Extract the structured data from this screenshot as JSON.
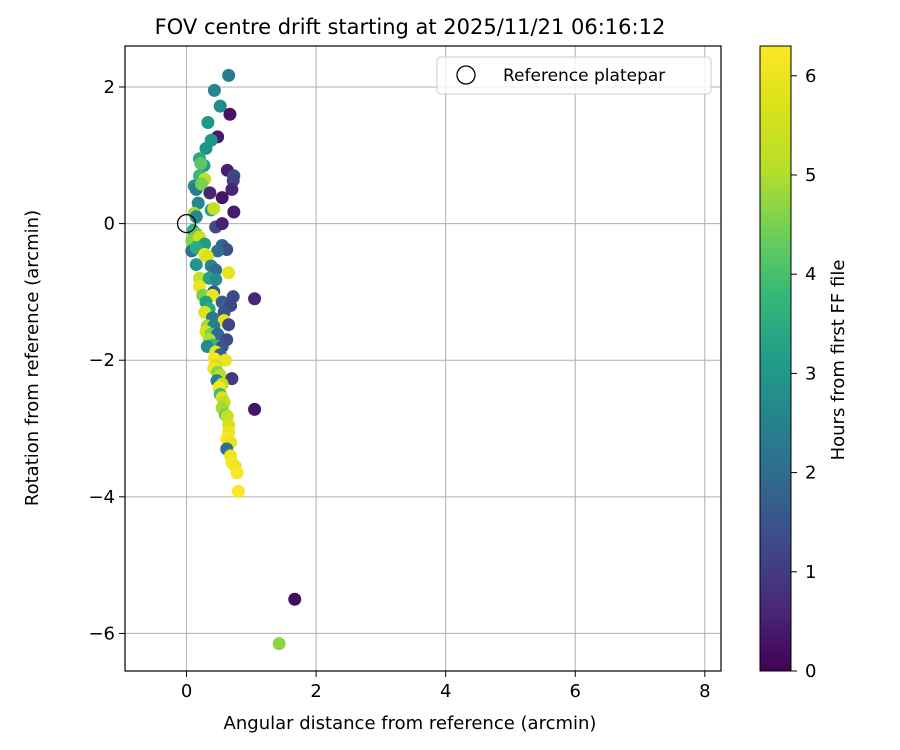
{
  "chart_data": {
    "type": "scatter",
    "title": "FOV centre drift starting at 2025/11/21 06:16:12",
    "xlabel": "Angular distance from reference (arcmin)",
    "ylabel": "Rotation from reference (arcmin)",
    "xlim": [
      -0.95,
      8.25
    ],
    "ylim": [
      -6.55,
      2.6
    ],
    "xticks": [
      0,
      2,
      4,
      6,
      8
    ],
    "xtick_labels": [
      "0",
      "2",
      "4",
      "6",
      "8"
    ],
    "yticks": [
      2,
      0,
      -2,
      -4,
      -6
    ],
    "ytick_labels": [
      "2",
      "0",
      "−2",
      "−4",
      "−6"
    ],
    "grid": true,
    "legend": {
      "location": "top-right",
      "entries": [
        "Reference platepar"
      ]
    },
    "reference_point": {
      "x": 0,
      "y": 0
    },
    "colorbar": {
      "label": "Hours from first FF file",
      "range": [
        0,
        6.3
      ],
      "ticks": [
        0,
        1,
        2,
        3,
        4,
        5,
        6
      ],
      "tick_labels": [
        "0",
        "1",
        "2",
        "3",
        "4",
        "5",
        "6"
      ],
      "colormap": "viridis"
    },
    "points": [
      [
        0.65,
        2.17,
        2.3
      ],
      [
        0.43,
        1.95,
        2.6
      ],
      [
        0.52,
        1.72,
        2.7
      ],
      [
        0.33,
        1.48,
        3.0
      ],
      [
        0.48,
        1.27,
        0.4
      ],
      [
        0.67,
        1.6,
        0.3
      ],
      [
        0.38,
        1.22,
        3.0
      ],
      [
        0.3,
        1.1,
        2.9
      ],
      [
        0.2,
        0.95,
        3.4
      ],
      [
        0.27,
        0.85,
        3.1
      ],
      [
        0.22,
        0.88,
        4.2
      ],
      [
        0.63,
        0.78,
        0.5
      ],
      [
        0.73,
        0.7,
        1.3
      ],
      [
        0.72,
        0.63,
        1.1
      ],
      [
        0.2,
        0.7,
        3.8
      ],
      [
        0.28,
        0.65,
        5.2
      ],
      [
        0.7,
        0.5,
        0.6
      ],
      [
        0.12,
        0.55,
        2.8
      ],
      [
        0.15,
        0.5,
        2.4
      ],
      [
        0.23,
        0.58,
        4.5
      ],
      [
        0.36,
        0.45,
        0.6
      ],
      [
        0.55,
        0.38,
        0.3
      ],
      [
        0.18,
        0.3,
        2.6
      ],
      [
        0.38,
        0.2,
        3.2
      ],
      [
        0.42,
        0.22,
        5.3
      ],
      [
        0.73,
        0.17,
        0.4
      ],
      [
        0.12,
        0.15,
        4.9
      ],
      [
        0.15,
        0.1,
        2.7
      ],
      [
        0.45,
        -0.05,
        1.3
      ],
      [
        0.55,
        0.0,
        0.5
      ],
      [
        0.1,
        -0.1,
        3.6
      ],
      [
        0.15,
        -0.15,
        4.3
      ],
      [
        0.08,
        -0.25,
        4.6
      ],
      [
        0.2,
        -0.2,
        5.5
      ],
      [
        0.28,
        -0.3,
        3.1
      ],
      [
        0.55,
        -0.32,
        1.8
      ],
      [
        0.62,
        -0.38,
        1.4
      ],
      [
        0.48,
        -0.4,
        2.0
      ],
      [
        0.08,
        -0.4,
        2.2
      ],
      [
        0.15,
        -0.35,
        3.5
      ],
      [
        0.28,
        -0.45,
        6.1
      ],
      [
        0.32,
        -0.48,
        5.7
      ],
      [
        0.15,
        -0.6,
        3.0
      ],
      [
        0.38,
        -0.62,
        2.6
      ],
      [
        0.45,
        -0.68,
        2.0
      ],
      [
        0.65,
        -0.72,
        5.9
      ],
      [
        0.2,
        -0.8,
        5.3
      ],
      [
        0.35,
        -0.8,
        3.3
      ],
      [
        0.45,
        -0.82,
        2.8
      ],
      [
        0.2,
        -0.92,
        6.0
      ],
      [
        0.42,
        -1.0,
        1.6
      ],
      [
        0.25,
        -1.05,
        4.5
      ],
      [
        0.4,
        -1.05,
        6.0
      ],
      [
        0.72,
        -1.07,
        1.3
      ],
      [
        1.05,
        -1.1,
        0.6
      ],
      [
        0.3,
        -1.15,
        3.2
      ],
      [
        0.55,
        -1.15,
        1.6
      ],
      [
        0.62,
        -1.2,
        1.8
      ],
      [
        0.68,
        -1.2,
        1.2
      ],
      [
        0.35,
        -1.25,
        3.5
      ],
      [
        0.28,
        -1.3,
        5.8
      ],
      [
        0.58,
        -1.3,
        1.5
      ],
      [
        0.4,
        -1.38,
        2.3
      ],
      [
        0.58,
        -1.42,
        5.9
      ],
      [
        0.65,
        -1.48,
        1.2
      ],
      [
        0.32,
        -1.5,
        4.9
      ],
      [
        0.42,
        -1.5,
        2.5
      ],
      [
        0.3,
        -1.58,
        5.6
      ],
      [
        0.38,
        -1.62,
        4.4
      ],
      [
        0.48,
        -1.62,
        2.0
      ],
      [
        0.35,
        -1.7,
        5.0
      ],
      [
        0.62,
        -1.7,
        1.3
      ],
      [
        0.4,
        -1.78,
        3.8
      ],
      [
        0.32,
        -1.8,
        2.7
      ],
      [
        0.55,
        -1.8,
        1.5
      ],
      [
        0.45,
        -1.88,
        5.9
      ],
      [
        0.52,
        -1.92,
        1.8
      ],
      [
        0.43,
        -1.98,
        6.2
      ],
      [
        0.6,
        -2.0,
        6.0
      ],
      [
        0.45,
        -2.08,
        5.5
      ],
      [
        0.42,
        -2.12,
        6.1
      ],
      [
        0.48,
        -2.18,
        4.6
      ],
      [
        0.52,
        -2.22,
        5.1
      ],
      [
        0.7,
        -2.27,
        0.9
      ],
      [
        0.47,
        -2.3,
        2.4
      ],
      [
        0.55,
        -2.35,
        5.3
      ],
      [
        0.5,
        -2.4,
        6.2
      ],
      [
        0.52,
        -2.5,
        3.9
      ],
      [
        0.55,
        -2.55,
        5.8
      ],
      [
        0.58,
        -2.62,
        5.2
      ],
      [
        0.55,
        -2.7,
        4.9
      ],
      [
        1.05,
        -2.72,
        0.3
      ],
      [
        0.6,
        -2.8,
        4.3
      ],
      [
        0.63,
        -2.82,
        5.4
      ],
      [
        0.65,
        -2.95,
        5.7
      ],
      [
        0.65,
        -3.05,
        6.0
      ],
      [
        0.62,
        -3.15,
        6.2
      ],
      [
        0.68,
        -3.2,
        5.9
      ],
      [
        0.62,
        -3.3,
        2.1
      ],
      [
        0.68,
        -3.4,
        6.0
      ],
      [
        0.7,
        -3.5,
        6.2
      ],
      [
        0.75,
        -3.55,
        6.1
      ],
      [
        0.78,
        -3.65,
        6.2
      ],
      [
        0.8,
        -3.92,
        6.3
      ],
      [
        1.67,
        -5.5,
        0.2
      ],
      [
        1.43,
        -6.15,
        4.7
      ]
    ]
  }
}
